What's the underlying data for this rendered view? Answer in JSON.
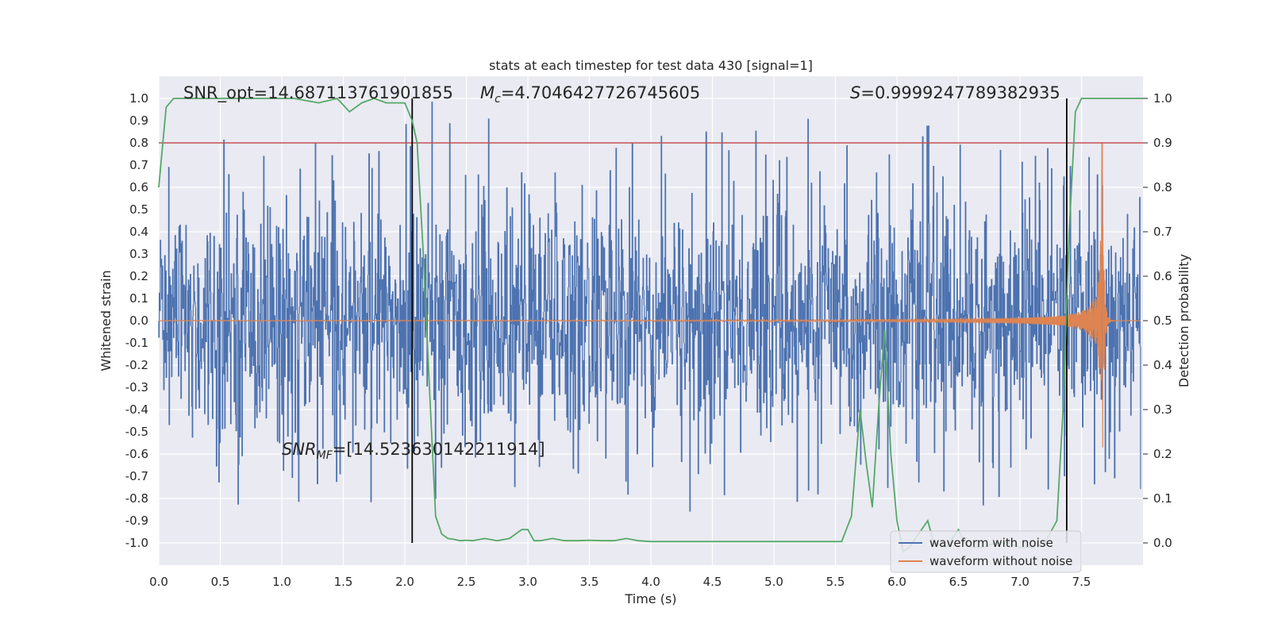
{
  "chart_data": {
    "type": "line",
    "title": "stats at each timestep for test data 430 [signal=1]",
    "xlabel": "Time (s)",
    "ylabel": "Whitened strain",
    "ylabel_right": "Detection probability",
    "xlim": [
      0.0,
      8.0
    ],
    "ylim": [
      -1.1,
      1.1
    ],
    "ylim_right": [
      -0.05,
      1.05
    ],
    "x_ticks": [
      "0.0",
      "0.5",
      "1.0",
      "1.5",
      "2.0",
      "2.5",
      "3.0",
      "3.5",
      "4.0",
      "4.5",
      "5.0",
      "5.5",
      "6.0",
      "6.5",
      "7.0",
      "7.5"
    ],
    "y_ticks": [
      "1.0",
      "0.9",
      "0.8",
      "0.7",
      "0.6",
      "0.5",
      "0.4",
      "0.3",
      "0.2",
      "0.1",
      "0.0",
      "-0.1",
      "-0.2",
      "-0.3",
      "-0.4",
      "-0.5",
      "-0.6",
      "-0.7",
      "-0.8",
      "-0.9",
      "-1.0"
    ],
    "y_ticks_right": [
      "1.0",
      "0.9",
      "0.8",
      "0.7",
      "0.6",
      "0.5",
      "0.4",
      "0.3",
      "0.2",
      "0.1",
      "0.0"
    ],
    "grid": true,
    "legend_position": "bottom-right",
    "annotations": {
      "snr_opt": "SNR_opt=14.687113761901855",
      "mc_symbol": "M",
      "mc_sub": "c",
      "mc_value": "=4.7046427726745605",
      "s_symbol": "S",
      "s_value": "=0.9999247789382935",
      "snr_mf_symbol": "SNR",
      "snr_mf_sub": "MF",
      "snr_mf_value": "=[14.523630142211914]"
    },
    "threshold": {
      "value": 0.9,
      "axis": "right",
      "color": "#c44e52"
    },
    "vlines": [
      2.06,
      7.38
    ],
    "series": [
      {
        "name": "waveform with noise",
        "color": "#4c72b0",
        "kind": "noise",
        "typical_amplitude": 0.5,
        "max_peak": 1.0
      },
      {
        "name": "waveform without noise",
        "color": "#dd8452",
        "kind": "chirp",
        "merger_time": 7.67,
        "peak_max": 0.8,
        "peak_min": -0.57
      },
      {
        "name": "detection probability",
        "color": "#55a868",
        "axis": "right",
        "x": [
          0.0,
          0.06,
          0.12,
          0.3,
          0.5,
          0.7,
          0.9,
          1.1,
          1.3,
          1.45,
          1.55,
          1.65,
          1.75,
          1.85,
          1.95,
          2.0,
          2.06,
          2.1,
          2.15,
          2.2,
          2.25,
          2.3,
          2.35,
          2.4,
          2.45,
          2.5,
          2.55,
          2.65,
          2.75,
          2.85,
          2.95,
          3.0,
          3.05,
          3.1,
          3.2,
          3.3,
          3.4,
          3.5,
          3.6,
          3.7,
          3.8,
          3.9,
          4.0,
          4.2,
          4.5,
          4.8,
          5.0,
          5.2,
          5.4,
          5.55,
          5.63,
          5.7,
          5.75,
          5.8,
          5.85,
          5.9,
          5.95,
          6.0,
          6.05,
          6.1,
          6.2,
          6.25,
          6.3,
          6.4,
          6.5,
          6.55,
          6.6,
          6.7,
          6.8,
          6.9,
          7.0,
          7.1,
          7.2,
          7.3,
          7.35,
          7.4,
          7.45,
          7.5,
          7.6,
          7.7,
          7.8,
          7.9,
          8.0
        ],
        "values": [
          0.8,
          0.98,
          1.0,
          1.0,
          1.0,
          1.0,
          1.0,
          1.0,
          0.99,
          1.0,
          0.97,
          0.99,
          1.0,
          0.99,
          0.99,
          0.99,
          0.95,
          0.9,
          0.65,
          0.35,
          0.06,
          0.02,
          0.01,
          0.008,
          0.005,
          0.006,
          0.005,
          0.01,
          0.005,
          0.01,
          0.03,
          0.03,
          0.005,
          0.005,
          0.01,
          0.005,
          0.005,
          0.006,
          0.005,
          0.005,
          0.01,
          0.005,
          0.003,
          0.003,
          0.003,
          0.003,
          0.003,
          0.003,
          0.003,
          0.003,
          0.06,
          0.3,
          0.18,
          0.08,
          0.3,
          0.48,
          0.2,
          0.05,
          -0.02,
          -0.01,
          0.03,
          0.05,
          0.0,
          -0.01,
          0.03,
          0.0,
          -0.01,
          -0.01,
          0.0,
          0.0,
          -0.01,
          -0.01,
          0.0,
          0.05,
          0.3,
          0.7,
          0.97,
          1.0,
          1.0,
          1.0,
          1.0,
          1.0,
          1.0
        ]
      }
    ]
  }
}
